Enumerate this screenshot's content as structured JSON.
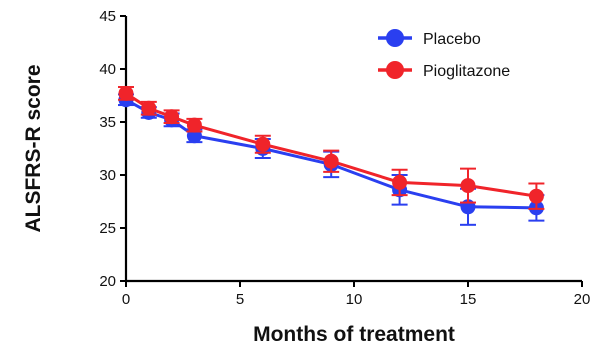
{
  "chart_data": {
    "type": "line",
    "title": "",
    "xlabel": "Months of treatment",
    "ylabel": "ALSFRS-R score",
    "xlim": [
      0,
      20
    ],
    "ylim": [
      20,
      45
    ],
    "xticks": [
      0,
      5,
      10,
      15,
      20
    ],
    "yticks": [
      20,
      25,
      30,
      35,
      40,
      45
    ],
    "grid": false,
    "legend_position": "top-right",
    "error_bars": true,
    "series": [
      {
        "name": "Placebo",
        "color": "#2a3ff0",
        "x": [
          0,
          1,
          2,
          3,
          6,
          9,
          12,
          15,
          18
        ],
        "y": [
          37.1,
          35.9,
          35.2,
          33.7,
          32.5,
          31.0,
          28.6,
          27.0,
          26.9
        ],
        "err": [
          0.5,
          0.5,
          0.6,
          0.6,
          0.9,
          1.2,
          1.4,
          1.7,
          1.2
        ]
      },
      {
        "name": "Pioglitazone",
        "color": "#f0242a",
        "x": [
          0,
          1,
          2,
          3,
          6,
          9,
          12,
          15,
          18
        ],
        "y": [
          37.7,
          36.3,
          35.5,
          34.7,
          32.9,
          31.3,
          29.3,
          29.0,
          28.0
        ],
        "err": [
          0.6,
          0.6,
          0.6,
          0.6,
          0.8,
          1.0,
          1.2,
          1.6,
          1.2
        ]
      }
    ]
  }
}
